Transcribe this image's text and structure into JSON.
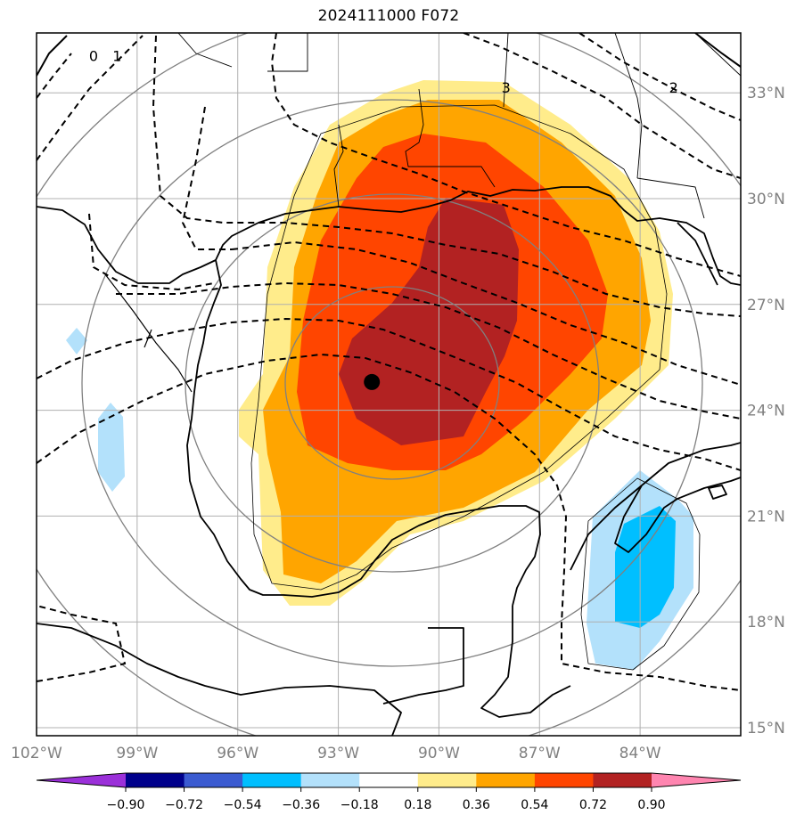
{
  "title": "2024111000 F072",
  "colors": {
    "ocean": "#ffffff",
    "land_line": "#000000",
    "grid": "#b0b0b0",
    "range_ring": "#808080",
    "contour": "#000000",
    "storm_center": "#000000"
  },
  "map": {
    "lon_range": [
      -102.0,
      -81.0
    ],
    "lat_range": [
      14.8,
      34.8
    ],
    "lon_ticks": [
      {
        "value": -102,
        "label": "102°W"
      },
      {
        "value": -99,
        "label": "99°W"
      },
      {
        "value": -96,
        "label": "96°W"
      },
      {
        "value": -93,
        "label": "93°W"
      },
      {
        "value": -90,
        "label": "90°W"
      },
      {
        "value": -87,
        "label": "87°W"
      },
      {
        "value": -84,
        "label": "84°W"
      }
    ],
    "lat_ticks": [
      {
        "value": 33,
        "label": "33°N"
      },
      {
        "value": 30,
        "label": "30°N"
      },
      {
        "value": 27,
        "label": "27°N"
      },
      {
        "value": 24,
        "label": "24°N"
      },
      {
        "value": 21,
        "label": "21°N"
      },
      {
        "value": 18,
        "label": "18°N"
      },
      {
        "value": 15,
        "label": "15°N"
      }
    ],
    "storm_center": {
      "lon": -92.0,
      "lat": 24.8
    },
    "contour_labels": [
      {
        "text": "0",
        "lon": -100.3,
        "lat": 33.9
      },
      {
        "text": "1",
        "lon": -99.6,
        "lat": 33.9
      },
      {
        "text": "3",
        "lon": -88.0,
        "lat": 33.0
      },
      {
        "text": "2",
        "lon": -83.0,
        "lat": 33.0
      }
    ]
  },
  "colorbar": {
    "ticks": [
      "−0.90",
      "−0.72",
      "−0.54",
      "−0.36",
      "−0.18",
      "0.18",
      "0.36",
      "0.54",
      "0.72",
      "0.90"
    ],
    "bins": [
      {
        "color": "#9b30d9"
      },
      {
        "color": "#00008b"
      },
      {
        "color": "#3b5bd1"
      },
      {
        "color": "#00bfff"
      },
      {
        "color": "#b3e1fb"
      },
      {
        "color": "#ffffff"
      },
      {
        "color": "#ffec8b"
      },
      {
        "color": "#ffa500"
      },
      {
        "color": "#ff4500"
      },
      {
        "color": "#b22222"
      },
      {
        "color": "#ff85b0"
      }
    ]
  },
  "fill_levels": {
    "positive": [
      "#ffec8b",
      "#ffa500",
      "#ff4500",
      "#b22222"
    ],
    "negative": [
      "#b3e1fb",
      "#00bfff"
    ]
  }
}
